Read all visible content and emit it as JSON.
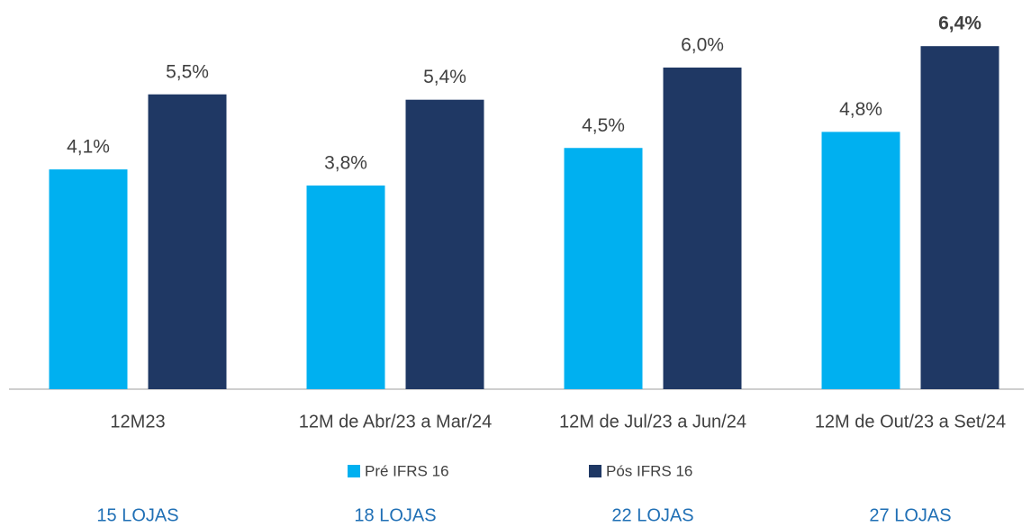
{
  "chart_data": {
    "type": "bar",
    "categories": [
      "12M23",
      "12M de Abr/23 a Mar/24",
      "12M de Jul/23 a Jun/24",
      "12M de Out/23 a Set/24"
    ],
    "series": [
      {
        "name": "Pré IFRS 16",
        "color": "#00b0f0",
        "values": [
          4.1,
          3.8,
          4.5,
          4.8
        ],
        "value_labels": [
          "4,1%",
          "3,8%",
          "4,5%",
          "4,8%"
        ],
        "bold_labels": [
          false,
          false,
          false,
          false
        ]
      },
      {
        "name": "Pós IFRS 16",
        "color": "#1f3864",
        "values": [
          5.5,
          5.4,
          6.0,
          6.4
        ],
        "value_labels": [
          "5,5%",
          "5,4%",
          "6,0%",
          "6,4%"
        ],
        "bold_labels": [
          false,
          false,
          false,
          true
        ]
      }
    ],
    "annotations": [
      "15 LOJAS",
      "18 LOJAS",
      "22 LOJAS",
      "27 LOJAS"
    ],
    "ylim": [
      0,
      7
    ],
    "grid": false,
    "legend": "bottom"
  }
}
